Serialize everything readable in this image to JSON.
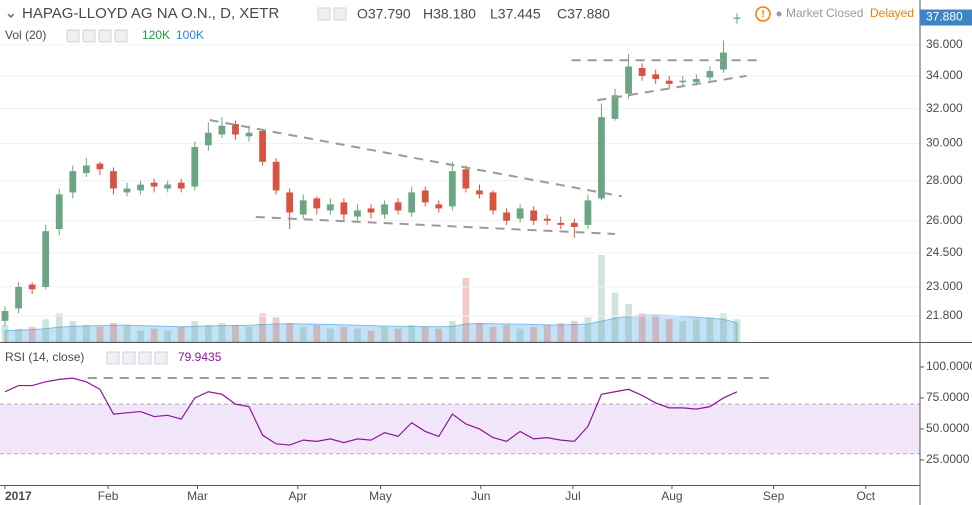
{
  "header": {
    "title": "HAPAG-LLOYD AG NA O.N., D, XETR",
    "ohlc": [
      "O37.790",
      "H38.180",
      "L37.445",
      "C37.880"
    ],
    "market_status": "Market Closed",
    "delay": "Delayed"
  },
  "chart_data": [
    {
      "type": "candlestick",
      "log_scale": true,
      "grid": true,
      "xlim": [
        -0.37,
        67.5
      ],
      "ylim": [
        20.77,
        39.13
      ],
      "yticks": [
        {
          "value": 36,
          "label": "36.000"
        },
        {
          "value": 34,
          "label": "34.000"
        },
        {
          "value": 32,
          "label": "32.000"
        },
        {
          "value": 30,
          "label": "30.000"
        },
        {
          "value": 28,
          "label": "28.000"
        },
        {
          "value": 26,
          "label": "26.000"
        },
        {
          "value": 24.5,
          "label": "24.500"
        },
        {
          "value": 23,
          "label": "23.000"
        },
        {
          "value": 21.8,
          "label": "21.800"
        }
      ],
      "open": [
        21.6,
        22.1,
        23.1,
        23.0,
        25.6,
        27.4,
        28.4,
        28.9,
        28.5,
        27.4,
        27.5,
        27.9,
        27.6,
        27.9,
        27.7,
        29.9,
        30.5,
        31.1,
        30.4,
        30.7,
        29.0,
        27.4,
        26.3,
        27.1,
        26.5,
        26.9,
        26.2,
        26.6,
        26.3,
        26.9,
        26.4,
        27.5,
        26.8,
        26.7,
        28.6,
        27.5,
        27.4,
        26.4,
        26.1,
        26.5,
        26.1,
        25.9,
        25.9,
        25.8,
        27.1,
        31.4,
        32.9,
        34.5,
        34.1,
        33.7,
        33.6,
        33.6,
        33.9,
        34.4,
        37.79
      ],
      "high": [
        22.2,
        23.2,
        23.2,
        25.8,
        27.6,
        28.8,
        29.2,
        29.0,
        28.7,
        27.9,
        28.0,
        28.1,
        28.0,
        28.1,
        30.1,
        31.2,
        31.5,
        31.3,
        31.0,
        30.8,
        29.2,
        27.6,
        27.3,
        27.2,
        27.1,
        27.1,
        26.8,
        26.8,
        27.0,
        27.1,
        27.7,
        27.7,
        27.0,
        29.0,
        28.8,
        27.8,
        27.5,
        26.6,
        26.8,
        26.7,
        26.3,
        26.2,
        26.1,
        27.3,
        32.3,
        33.2,
        35.4,
        34.8,
        34.4,
        34.0,
        34.0,
        34.1,
        34.6,
        36.3,
        38.18
      ],
      "low": [
        21.4,
        21.9,
        22.7,
        22.9,
        25.3,
        27.1,
        28.2,
        28.3,
        27.3,
        27.2,
        27.3,
        27.4,
        27.4,
        27.4,
        27.5,
        29.6,
        30.3,
        30.2,
        30.1,
        28.8,
        27.3,
        25.6,
        26.1,
        26.3,
        26.3,
        26.0,
        26.0,
        26.1,
        26.1,
        26.3,
        26.2,
        26.7,
        26.4,
        26.5,
        27.4,
        27.1,
        26.3,
        25.8,
        25.9,
        25.8,
        25.8,
        25.6,
        25.2,
        25.6,
        27.0,
        31.3,
        32.6,
        33.7,
        33.5,
        33.2,
        33.3,
        33.4,
        33.7,
        34.2,
        37.445
      ],
      "close": [
        22.0,
        23.0,
        22.9,
        25.5,
        27.3,
        28.5,
        28.8,
        28.6,
        27.6,
        27.6,
        27.8,
        27.7,
        27.8,
        27.6,
        29.8,
        30.6,
        31.0,
        30.5,
        30.6,
        29.0,
        27.5,
        26.4,
        27.0,
        26.6,
        26.8,
        26.3,
        26.5,
        26.4,
        26.8,
        26.5,
        27.4,
        26.9,
        26.6,
        28.5,
        27.6,
        27.3,
        26.5,
        26.0,
        26.6,
        26.0,
        26.0,
        25.8,
        25.7,
        27.0,
        31.5,
        32.8,
        34.6,
        34.0,
        33.8,
        33.5,
        33.7,
        33.8,
        34.3,
        35.5,
        37.88
      ],
      "up_color": "#6ba583",
      "down_color": "#d75442",
      "last_price_label": "37.880",
      "last_price_color": "#3d85c6",
      "trendlines": [
        {
          "from": [
            15.1,
            31.33
          ],
          "to": [
            45.5,
            27.2
          ]
        },
        {
          "from": [
            18.5,
            26.18
          ],
          "to": [
            45.0,
            25.37
          ]
        },
        {
          "from": [
            41.8,
            35.0
          ],
          "to": [
            55.5,
            35.0
          ]
        },
        {
          "from": [
            43.7,
            32.5
          ],
          "to": [
            54.7,
            34.0
          ]
        }
      ]
    },
    {
      "type": "volume",
      "title": "Vol (20)",
      "ylim": [
        0,
        1800
      ],
      "values": [
        90,
        70,
        80,
        120,
        150,
        110,
        90,
        80,
        100,
        90,
        60,
        70,
        60,
        80,
        110,
        90,
        100,
        90,
        80,
        150,
        130,
        100,
        80,
        90,
        70,
        80,
        70,
        60,
        80,
        70,
        90,
        80,
        70,
        110,
        337,
        100,
        80,
        90,
        70,
        80,
        90,
        100,
        110,
        130,
        458,
        260,
        200,
        150,
        140,
        120,
        110,
        120,
        130,
        150,
        120
      ],
      "ma": [
        60,
        62,
        65,
        70,
        78,
        82,
        85,
        86,
        88,
        88,
        86,
        84,
        82,
        80,
        82,
        84,
        86,
        86,
        88,
        92,
        95,
        96,
        95,
        94,
        92,
        90,
        88,
        86,
        84,
        82,
        82,
        81,
        80,
        82,
        95,
        97,
        96,
        95,
        94,
        92,
        90,
        90,
        92,
        95,
        110,
        125,
        135,
        140,
        142,
        140,
        135,
        130,
        125,
        120,
        100
      ],
      "last_value_label": "120K",
      "last_ma_label": "100K",
      "ma_color": "#7cbfee"
    },
    {
      "type": "line",
      "title": "RSI (14, close)",
      "color": "#8e1599",
      "band_color": "#f2e6fb",
      "ylim": [
        4.8,
        117.7
      ],
      "bands": [
        30,
        70
      ],
      "yticks": [
        {
          "value": 100,
          "label": "100.0000"
        },
        {
          "value": 75,
          "label": "75.0000"
        },
        {
          "value": 50,
          "label": "50.0000"
        },
        {
          "value": 25,
          "label": "25.0000"
        }
      ],
      "values": [
        80,
        85,
        85,
        88,
        90,
        91,
        88,
        82,
        62,
        63,
        64,
        60,
        61,
        58,
        75,
        80,
        78,
        70,
        68,
        45,
        38,
        37,
        41,
        40,
        42,
        39,
        42,
        41,
        47,
        44,
        55,
        48,
        44,
        62,
        54,
        50,
        43,
        40,
        48,
        42,
        43,
        41,
        40,
        52,
        78,
        80,
        82,
        77,
        71,
        67,
        67,
        66,
        68,
        75,
        79.9435
      ],
      "trendlines": [
        {
          "from": [
            6.1,
            91.1
          ],
          "to": [
            56.8,
            91.1
          ]
        }
      ],
      "xticks": [
        {
          "value": 0,
          "label": "2017"
        },
        {
          "value": 7.6,
          "label": "Feb"
        },
        {
          "value": 14.2,
          "label": "Mar"
        },
        {
          "value": 21.6,
          "label": "Apr"
        },
        {
          "value": 27.7,
          "label": "May"
        },
        {
          "value": 35.1,
          "label": "Jun"
        },
        {
          "value": 41.9,
          "label": "Jul"
        },
        {
          "value": 49.2,
          "label": "Aug"
        },
        {
          "value": 56.7,
          "label": "Sep"
        },
        {
          "value": 63.5,
          "label": "Oct"
        }
      ]
    }
  ]
}
